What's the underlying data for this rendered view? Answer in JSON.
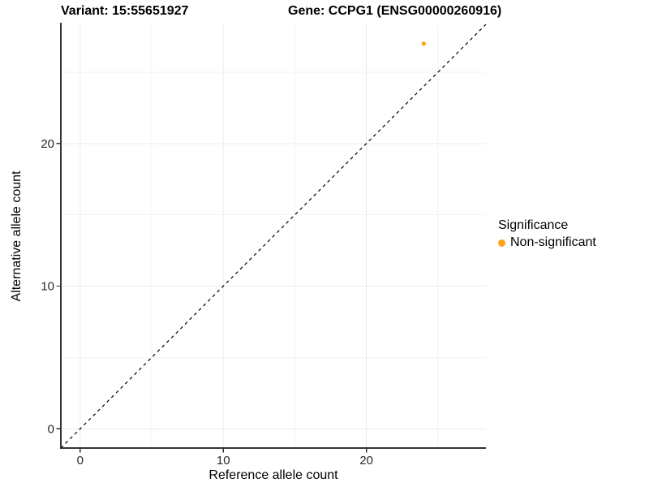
{
  "chart_data": {
    "type": "scatter",
    "titles": {
      "left": "Variant: 15:55651927",
      "right": "Gene: CCPG1 (ENSG00000260916)"
    },
    "xlabel": "Reference allele count",
    "ylabel": "Alternative allele count",
    "xlim": [
      -1.35,
      28.35
    ],
    "ylim": [
      -1.35,
      28.35
    ],
    "x_major_ticks": [
      0,
      10,
      20
    ],
    "y_major_ticks": [
      0,
      10,
      20
    ],
    "x_minor_ticks": [
      5,
      15,
      25
    ],
    "y_minor_ticks": [
      5,
      15,
      25
    ],
    "grid": true,
    "legend_position": "right",
    "legend": {
      "title": "Significance",
      "entries": [
        {
          "label": "Non-significant",
          "color": "#FFA319"
        }
      ]
    },
    "series": [
      {
        "name": "Non-significant",
        "color": "#FFA319",
        "points": [
          {
            "x": 24,
            "y": 27
          }
        ]
      }
    ],
    "reference_line": {
      "slope": 1,
      "intercept": 0,
      "style": "dashed",
      "color": "#000000"
    },
    "colors": {
      "grid_major": "#EBEBEB",
      "grid_minor": "#F3F3F3",
      "axis_line": "#333333",
      "tick_mark": "#333333",
      "tick_label": "#262626",
      "title_text": "#000000"
    }
  }
}
